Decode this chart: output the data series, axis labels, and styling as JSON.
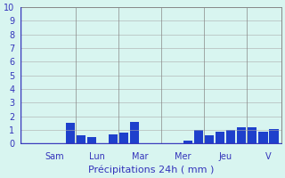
{
  "title": "",
  "xlabel": "Précipitations 24h ( mm )",
  "ylabel": "",
  "background_color": "#d8f5f0",
  "bar_color": "#1e40cc",
  "bar_color2": "#3399ff",
  "ylim": [
    0,
    10
  ],
  "yticks": [
    0,
    1,
    2,
    3,
    4,
    5,
    6,
    7,
    8,
    9,
    10
  ],
  "day_labels": [
    "Sam",
    "Lun",
    "Mar",
    "Mer",
    "Jeu",
    "V"
  ],
  "day_positions": [
    2.5,
    6.5,
    10.5,
    14.5,
    18.5,
    22.5
  ],
  "day_sep_positions": [
    4.5,
    8.5,
    12.5,
    16.5,
    20.5
  ],
  "n_bars": 24,
  "bar_values": [
    0,
    0,
    0,
    0,
    1.5,
    0.6,
    0.5,
    0,
    0.7,
    0.8,
    1.6,
    0,
    0,
    0,
    0,
    0.2,
    1.0,
    0.6,
    0.9,
    1.0,
    1.2,
    1.2,
    0.9,
    1.1
  ]
}
